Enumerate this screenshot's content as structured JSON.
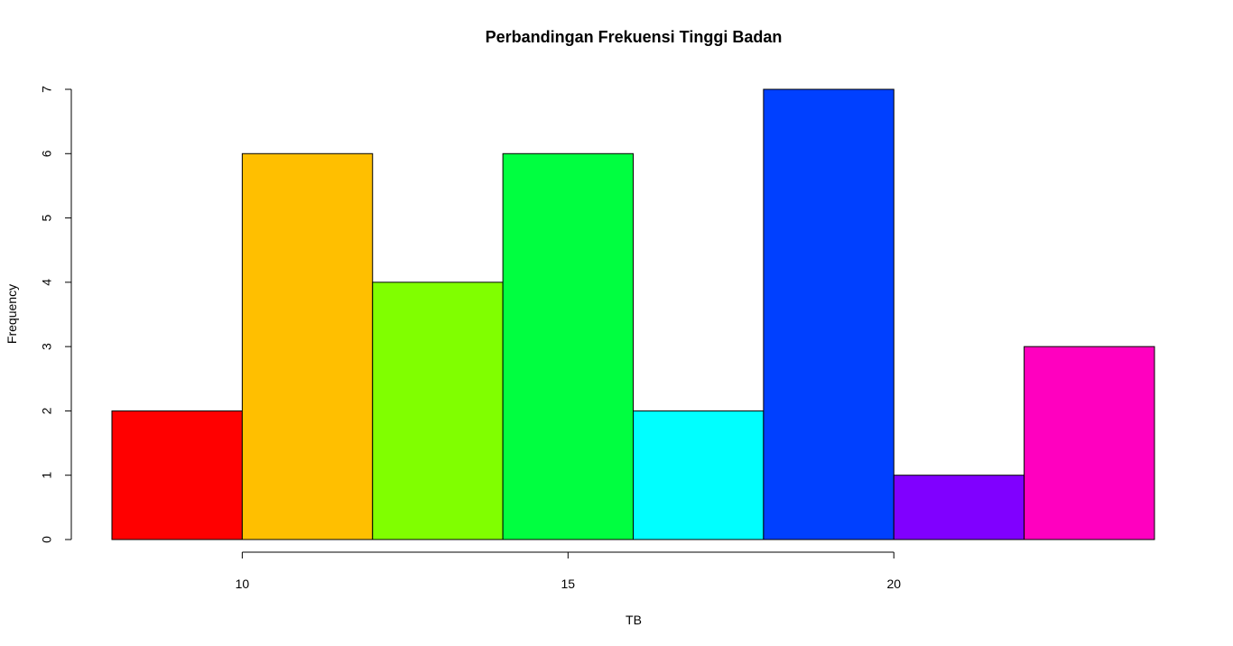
{
  "chart_data": {
    "type": "bar",
    "title": "Perbandingan Frekuensi Tinggi Badan",
    "xlabel": "TB",
    "ylabel": "Frequency",
    "bins": [
      {
        "from": 8,
        "to": 10,
        "count": 2,
        "color": "#FF0000"
      },
      {
        "from": 10,
        "to": 12,
        "count": 6,
        "color": "#FFBF00"
      },
      {
        "from": 12,
        "to": 14,
        "count": 4,
        "color": "#80FF00"
      },
      {
        "from": 14,
        "to": 16,
        "count": 6,
        "color": "#00FF40"
      },
      {
        "from": 16,
        "to": 18,
        "count": 2,
        "color": "#00FFFF"
      },
      {
        "from": 18,
        "to": 20,
        "count": 7,
        "color": "#0040FF"
      },
      {
        "from": 20,
        "to": 22,
        "count": 1,
        "color": "#8000FF"
      },
      {
        "from": 22,
        "to": 24,
        "count": 3,
        "color": "#FF00BF"
      }
    ],
    "xlim": [
      8,
      24
    ],
    "ylim": [
      0,
      7
    ],
    "x_ticks": [
      10,
      15,
      20
    ],
    "y_ticks": [
      0,
      1,
      2,
      3,
      4,
      5,
      6,
      7
    ],
    "grid": false
  }
}
